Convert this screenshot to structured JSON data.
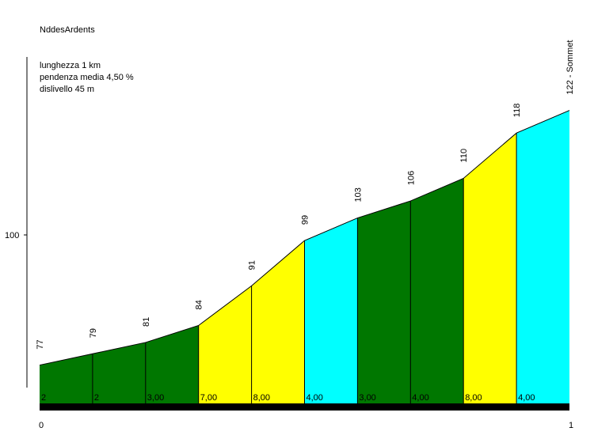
{
  "chart_data": {
    "type": "area",
    "title": "NddesArdents",
    "info": [
      "lunghezza 1 km",
      "pendenza media 4,50 %",
      "dislivello 45 m"
    ],
    "ytick": "100",
    "xticks": [
      "0",
      "1"
    ],
    "points": [
      {
        "x": 0.0,
        "y": 77,
        "label": "77"
      },
      {
        "x": 0.1,
        "y": 79,
        "label": "79"
      },
      {
        "x": 0.2,
        "y": 81,
        "label": "81"
      },
      {
        "x": 0.3,
        "y": 84,
        "label": "84"
      },
      {
        "x": 0.4,
        "y": 91,
        "label": "91"
      },
      {
        "x": 0.5,
        "y": 99,
        "label": "99"
      },
      {
        "x": 0.6,
        "y": 103,
        "label": "103"
      },
      {
        "x": 0.7,
        "y": 106,
        "label": "106"
      },
      {
        "x": 0.8,
        "y": 110,
        "label": "110"
      },
      {
        "x": 0.9,
        "y": 118,
        "label": "118"
      },
      {
        "x": 1.0,
        "y": 122,
        "label": "122 - Sommet"
      }
    ],
    "segments": [
      {
        "grade": "2",
        "color": "#007700"
      },
      {
        "grade": "2",
        "color": "#007700"
      },
      {
        "grade": "3,00",
        "color": "#007700"
      },
      {
        "grade": "7,00",
        "color": "#ffff00"
      },
      {
        "grade": "8,00",
        "color": "#ffff00"
      },
      {
        "grade": "4,00",
        "color": "#00ffff"
      },
      {
        "grade": "3,00",
        "color": "#007700"
      },
      {
        "grade": "4,00",
        "color": "#007700"
      },
      {
        "grade": "8,00",
        "color": "#ffff00"
      },
      {
        "grade": "4,00",
        "color": "#00ffff"
      }
    ],
    "xlim": [
      0,
      1
    ],
    "ylim": [
      54,
      128
    ]
  }
}
